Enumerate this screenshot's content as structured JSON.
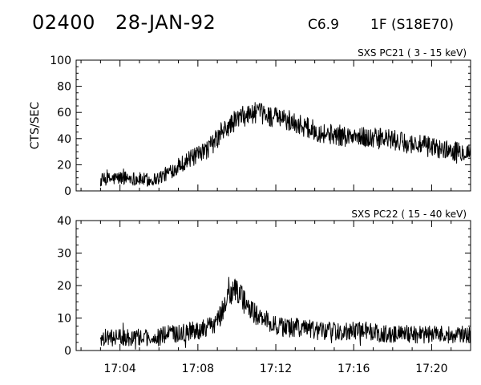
{
  "header": {
    "event_id": "02400",
    "date": "28-JAN-92",
    "flare_class": "C6.9",
    "flare_location": "1F (S18E70)"
  },
  "chart_data": [
    {
      "type": "line",
      "title": "SXS PC21  (  3 - 15 keV)",
      "ylabel": "CTS/SEC",
      "xlabel": "",
      "ylim": [
        0,
        100
      ],
      "yticks": [
        "0",
        "20",
        "40",
        "60",
        "80",
        "100"
      ],
      "xticks": [
        "17:04",
        "17:08",
        "17:12",
        "17:16",
        "17:20"
      ],
      "xlim_minutes": [
        1021.75,
        1042.0
      ],
      "grid": false,
      "series": [
        {
          "x_minutes": [
            1023.0,
            1023.5,
            1024.0,
            1024.5,
            1025.0,
            1025.5,
            1026.0,
            1026.5,
            1027.0,
            1027.5,
            1028.0,
            1028.5,
            1029.0,
            1029.5,
            1030.0,
            1030.5,
            1031.0,
            1031.5,
            1032.0,
            1032.5,
            1033.0,
            1033.5,
            1034.0,
            1034.5,
            1035.0,
            1035.5,
            1036.0,
            1036.5,
            1037.0,
            1037.5,
            1038.0,
            1038.5,
            1039.0,
            1039.5,
            1040.0,
            1040.5,
            1041.0,
            1041.5,
            1042.0
          ],
          "values": [
            8,
            9,
            10,
            10,
            9,
            8,
            10,
            14,
            19,
            24,
            27,
            32,
            40,
            48,
            55,
            58,
            60,
            58,
            56,
            54,
            52,
            49,
            46,
            44,
            43,
            42,
            41,
            41,
            40,
            40,
            39,
            37,
            36,
            35,
            34,
            32,
            31,
            30,
            30
          ],
          "noise_amplitude": 8
        }
      ]
    },
    {
      "type": "line",
      "title": "SXS PC22  ( 15 - 40 keV)",
      "ylabel": "",
      "xlabel": "",
      "ylim": [
        0,
        40
      ],
      "yticks": [
        "0",
        "10",
        "20",
        "30",
        "40"
      ],
      "xticks": [
        "17:04",
        "17:08",
        "17:12",
        "17:16",
        "17:20"
      ],
      "xlim_minutes": [
        1021.75,
        1042.0
      ],
      "grid": false,
      "series": [
        {
          "x_minutes": [
            1023.0,
            1023.5,
            1024.0,
            1024.5,
            1025.0,
            1025.5,
            1026.0,
            1026.5,
            1027.0,
            1027.5,
            1028.0,
            1028.5,
            1029.0,
            1029.5,
            1030.0,
            1030.5,
            1031.0,
            1031.5,
            1032.0,
            1032.5,
            1033.0,
            1033.5,
            1034.0,
            1034.5,
            1035.0,
            1035.5,
            1036.0,
            1036.5,
            1037.0,
            1037.5,
            1038.0,
            1038.5,
            1039.0,
            1039.5,
            1040.0,
            1040.5,
            1041.0,
            1041.5,
            1042.0
          ],
          "values": [
            4,
            4,
            4,
            4,
            4,
            4,
            4,
            5,
            5,
            6,
            6,
            7,
            9,
            15,
            19,
            14,
            11,
            9,
            8,
            7,
            7,
            7,
            6,
            6,
            6,
            6,
            6,
            6,
            6,
            5,
            5,
            5,
            5,
            5,
            5,
            5,
            5,
            5,
            5
          ],
          "noise_amplitude": 4
        }
      ]
    }
  ]
}
